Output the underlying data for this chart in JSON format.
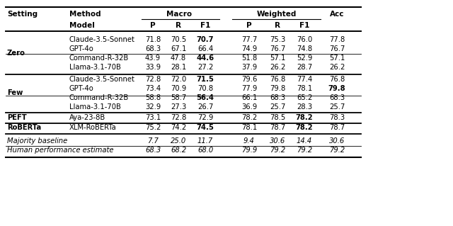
{
  "rows": [
    {
      "setting": "Zero",
      "model": "Claude-3.5-Sonnet",
      "mp": "71.8",
      "mr": "70.5",
      "mf1": "70.7",
      "mf1_bold": true,
      "wp": "77.7",
      "wr": "75.3",
      "wf1": "76.0",
      "wf1_bold": false,
      "acc": "77.8",
      "acc_bold": false,
      "italic": false,
      "group": "zero_top"
    },
    {
      "setting": "",
      "model": "GPT-4o",
      "mp": "68.3",
      "mr": "67.1",
      "mf1": "66.4",
      "mf1_bold": false,
      "wp": "74.9",
      "wr": "76.7",
      "wf1": "74.8",
      "wf1_bold": false,
      "acc": "76.7",
      "acc_bold": false,
      "italic": false,
      "group": "zero_top"
    },
    {
      "setting": "",
      "model": "Command-R-32B",
      "mp": "43.9",
      "mr": "47.8",
      "mf1": "44.6",
      "mf1_bold": true,
      "wp": "51.8",
      "wr": "57.1",
      "wf1": "52.9",
      "wf1_bold": false,
      "acc": "57.1",
      "acc_bold": false,
      "italic": false,
      "group": "zero_bot"
    },
    {
      "setting": "",
      "model": "Llama-3.1-70B",
      "mp": "33.9",
      "mr": "28.1",
      "mf1": "27.2",
      "mf1_bold": false,
      "wp": "37.9",
      "wr": "26.2",
      "wf1": "28.7",
      "wf1_bold": false,
      "acc": "26.2",
      "acc_bold": false,
      "italic": false,
      "group": "zero_bot"
    },
    {
      "setting": "Few",
      "model": "Claude-3.5-Sonnet",
      "mp": "72.8",
      "mr": "72.0",
      "mf1": "71.5",
      "mf1_bold": true,
      "wp": "79.6",
      "wr": "76.8",
      "wf1": "77.4",
      "wf1_bold": false,
      "acc": "76.8",
      "acc_bold": false,
      "italic": false,
      "group": "few_top"
    },
    {
      "setting": "",
      "model": "GPT-4o",
      "mp": "73.4",
      "mr": "70.9",
      "mf1": "70.8",
      "mf1_bold": false,
      "wp": "77.9",
      "wr": "79.8",
      "wf1": "78.1",
      "wf1_bold": false,
      "acc": "79.8",
      "acc_bold": true,
      "italic": false,
      "group": "few_top"
    },
    {
      "setting": "",
      "model": "Command-R-32B",
      "mp": "58.8",
      "mr": "58.7",
      "mf1": "56.4",
      "mf1_bold": true,
      "wp": "66.1",
      "wr": "68.3",
      "wf1": "65.2",
      "wf1_bold": false,
      "acc": "68.3",
      "acc_bold": false,
      "italic": false,
      "group": "few_bot"
    },
    {
      "setting": "",
      "model": "Llama-3.1-70B",
      "mp": "32.9",
      "mr": "27.3",
      "mf1": "26.7",
      "mf1_bold": false,
      "wp": "36.9",
      "wr": "25.7",
      "wf1": "28.3",
      "wf1_bold": false,
      "acc": "25.7",
      "acc_bold": false,
      "italic": false,
      "group": "few_bot"
    },
    {
      "setting": "PEFT",
      "model": "Aya-23-8B",
      "mp": "73.1",
      "mr": "72.8",
      "mf1": "72.9",
      "mf1_bold": false,
      "wp": "78.2",
      "wr": "78.5",
      "wf1": "78.2",
      "wf1_bold": true,
      "acc": "78.3",
      "acc_bold": false,
      "italic": false,
      "group": "peft"
    },
    {
      "setting": "RoBERTa",
      "model": "XLM-RoBERTa",
      "mp": "75.2",
      "mr": "74.2",
      "mf1": "74.5",
      "mf1_bold": true,
      "wp": "78.1",
      "wr": "78.7",
      "wf1": "78.2",
      "wf1_bold": true,
      "acc": "78.7",
      "acc_bold": false,
      "italic": false,
      "group": "roberta"
    },
    {
      "setting": "Majority baseline",
      "model": "",
      "mp": "7.7",
      "mr": "25.0",
      "mf1": "11.7",
      "mf1_bold": false,
      "wp": "9.4",
      "wr": "30.6",
      "wf1": "14.4",
      "wf1_bold": false,
      "acc": "30.6",
      "acc_bold": false,
      "italic": true,
      "group": "baseline"
    },
    {
      "setting": "Human performance estimate",
      "model": "",
      "mp": "68.3",
      "mr": "68.2",
      "mf1": "68.0",
      "mf1_bold": false,
      "wp": "79.9",
      "wr": "79.2",
      "wf1": "79.2",
      "wf1_bold": false,
      "acc": "79.2",
      "acc_bold": false,
      "italic": true,
      "group": "baseline"
    }
  ],
  "col_x": {
    "setting": 10,
    "model": 98,
    "mp": 216,
    "mr": 252,
    "mf1": 290,
    "wp": 352,
    "wr": 392,
    "wf1": 430,
    "acc": 476
  },
  "fs_header": 7.5,
  "fs_data": 7.2
}
